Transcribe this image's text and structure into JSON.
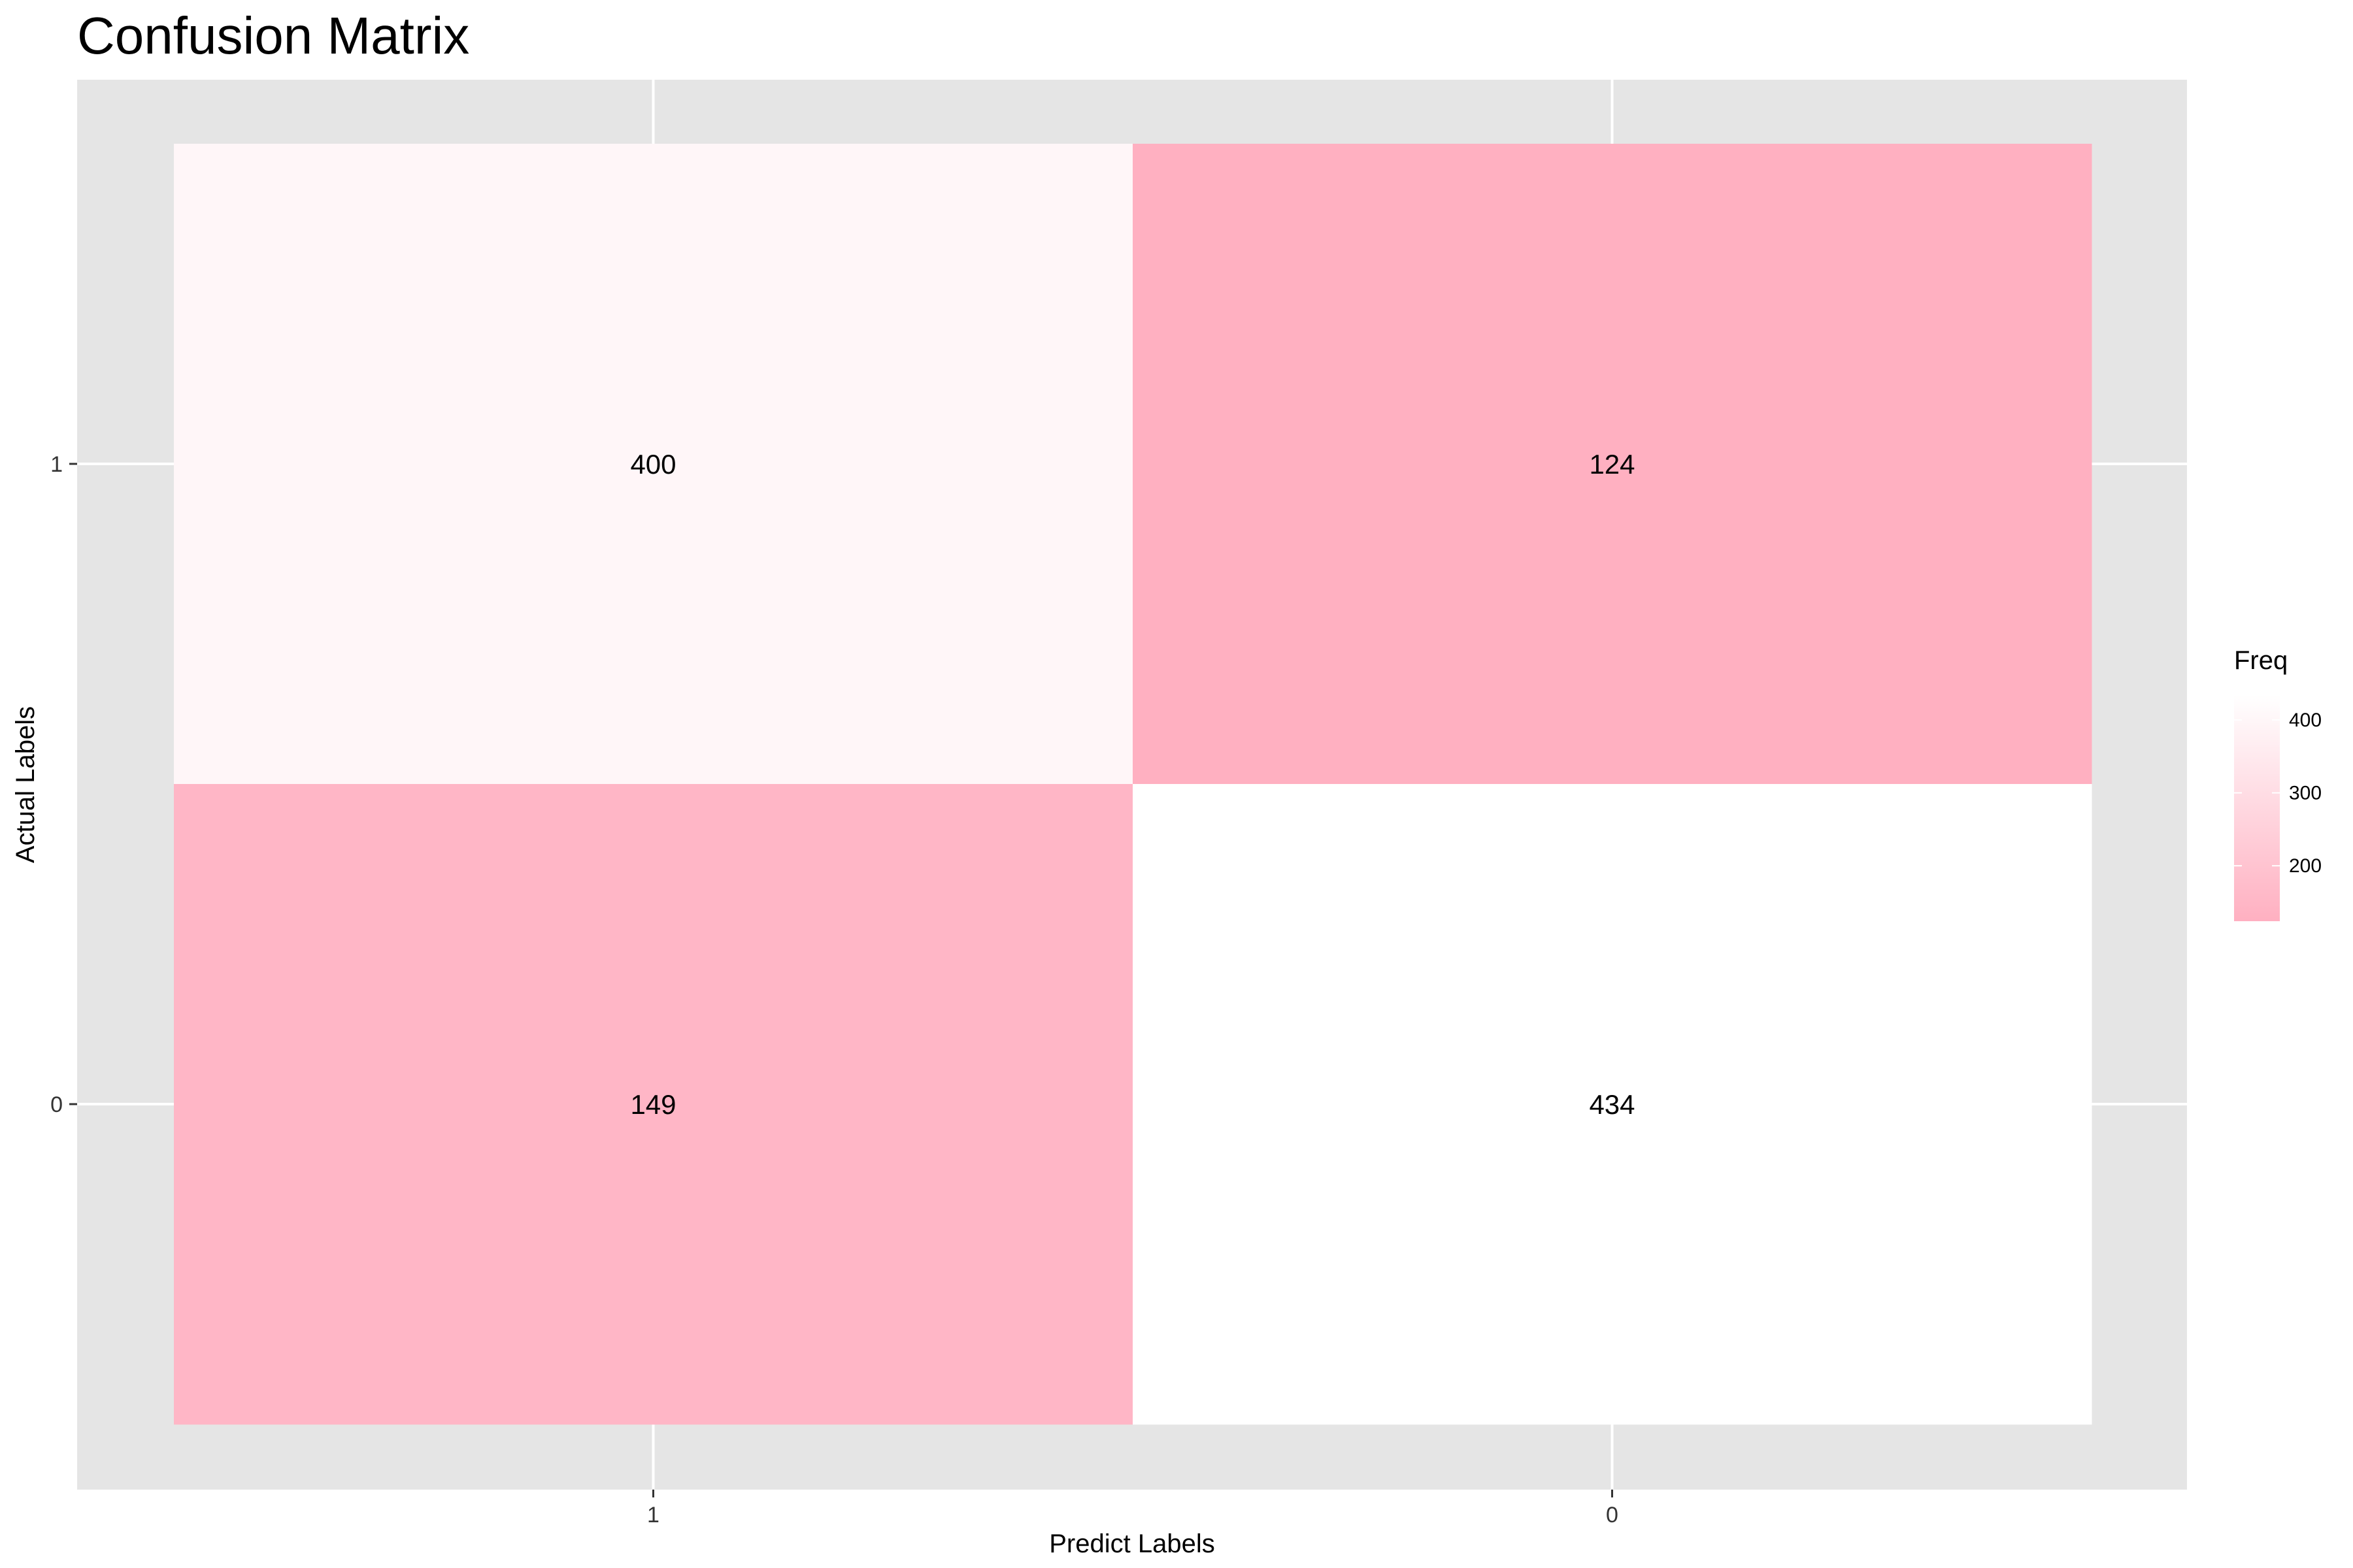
{
  "chart_data": {
    "type": "heatmap",
    "title": "Confusion Matrix",
    "xlabel": "Predict Labels",
    "ylabel": "Actual Labels",
    "x_categories": [
      "1",
      "0"
    ],
    "y_categories": [
      "1",
      "0"
    ],
    "cells": [
      {
        "x": "1",
        "y": "1",
        "value": 400
      },
      {
        "x": "0",
        "y": "1",
        "value": 124
      },
      {
        "x": "1",
        "y": "0",
        "value": 149
      },
      {
        "x": "0",
        "y": "0",
        "value": 434
      }
    ],
    "legend": {
      "title": "Freq",
      "ticks": [
        200,
        300,
        400
      ],
      "placement": "right"
    },
    "color_low": "#FFB0C1",
    "color_high": "#FFFFFF",
    "panel_background": "#E5E5E5",
    "grid": true
  }
}
